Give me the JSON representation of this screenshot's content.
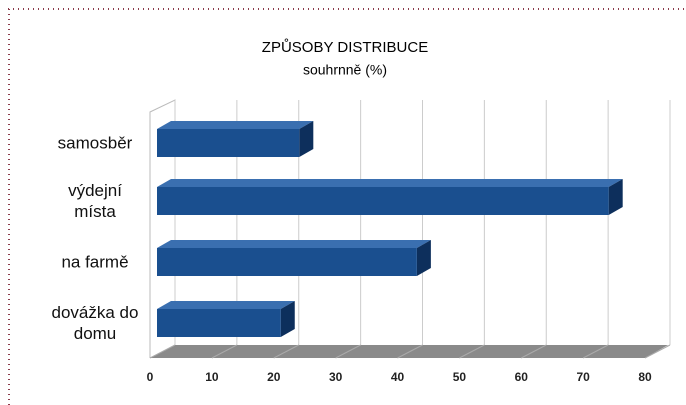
{
  "chart_data": {
    "type": "bar",
    "orientation": "horizontal",
    "title": "ZPŮSOBY DISTRIBUCE",
    "subtitle": "souhrnně (%)",
    "categories": [
      "samosběr",
      "výdejní místa",
      "na farmě",
      "dovážka do domu"
    ],
    "values": [
      23,
      73,
      42,
      20
    ],
    "color": "#1a4f8f",
    "xlim": [
      0,
      80
    ],
    "xticks": [
      0,
      10,
      20,
      30,
      40,
      50,
      60,
      70,
      80
    ],
    "grid": true
  }
}
